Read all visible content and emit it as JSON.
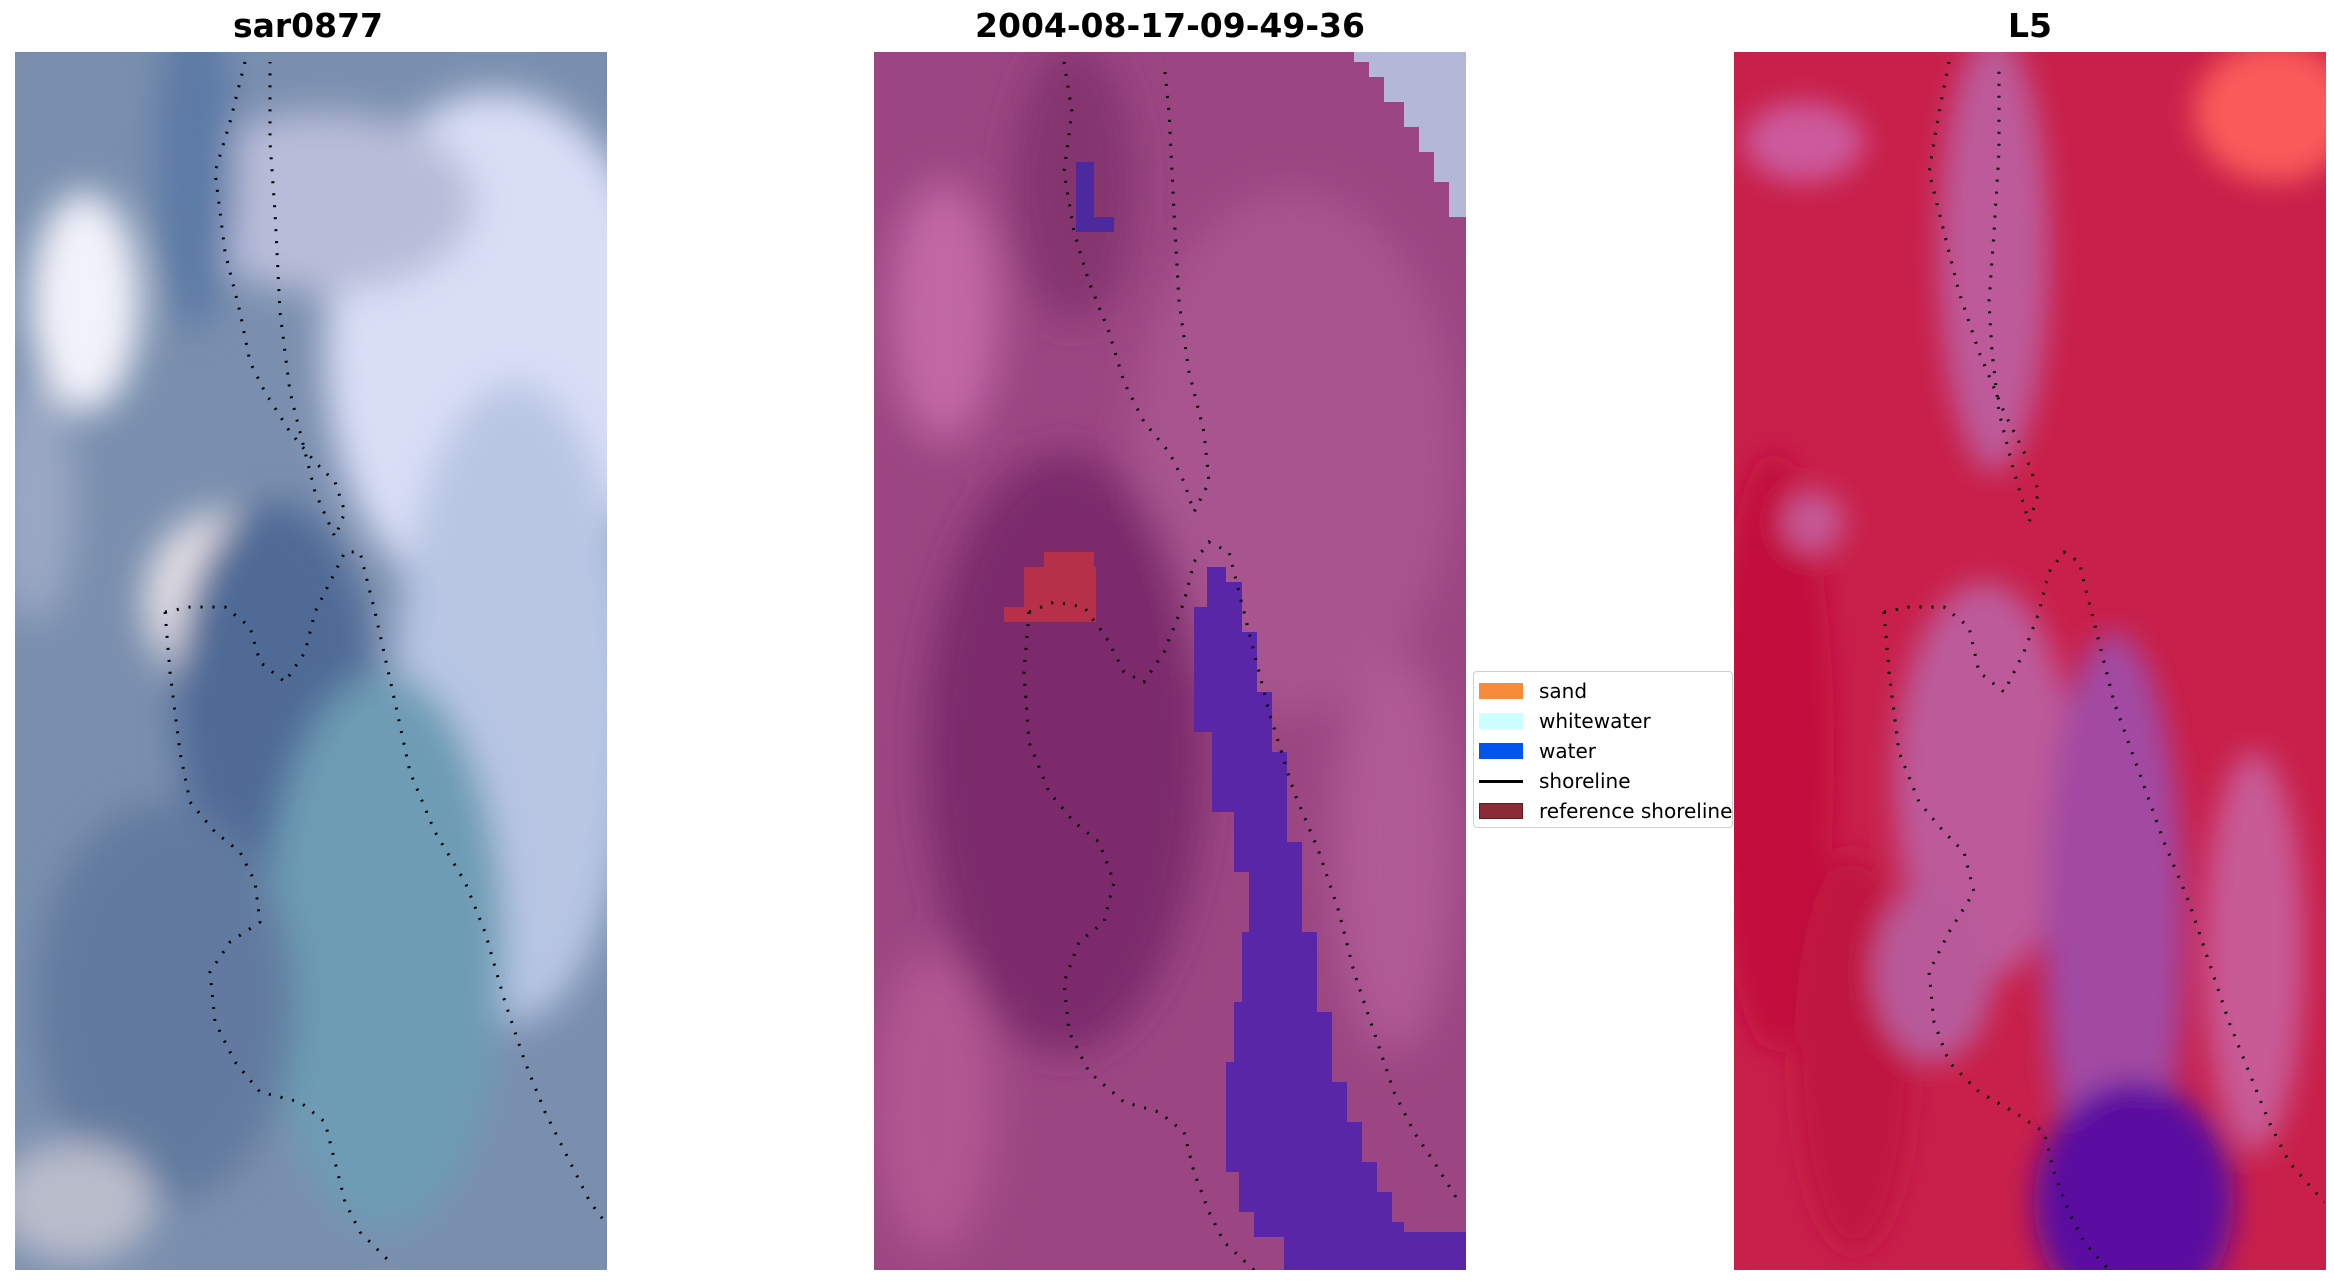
{
  "panels": [
    {
      "title": "sar0877"
    },
    {
      "title": "2004-08-17-09-49-36"
    },
    {
      "title": "L5"
    }
  ],
  "legend": {
    "items": [
      {
        "label": "sand",
        "color": "#f88a3c",
        "kind": "patch"
      },
      {
        "label": "whitewater",
        "color": "#ccffff",
        "kind": "patch"
      },
      {
        "label": "water",
        "color": "#0055ee",
        "kind": "patch"
      },
      {
        "label": "shoreline",
        "color": "#000000",
        "kind": "line"
      },
      {
        "label": "reference shoreline",
        "color": "#8b2b35",
        "kind": "patch"
      }
    ]
  },
  "colors": {
    "rgb_panel_base": "#7a8fae",
    "classified_panel_base": "#9b4682",
    "index_panel_base": "#c8204a",
    "water_overlay": "#5a26a8",
    "reference_overlay": "#b73049"
  }
}
